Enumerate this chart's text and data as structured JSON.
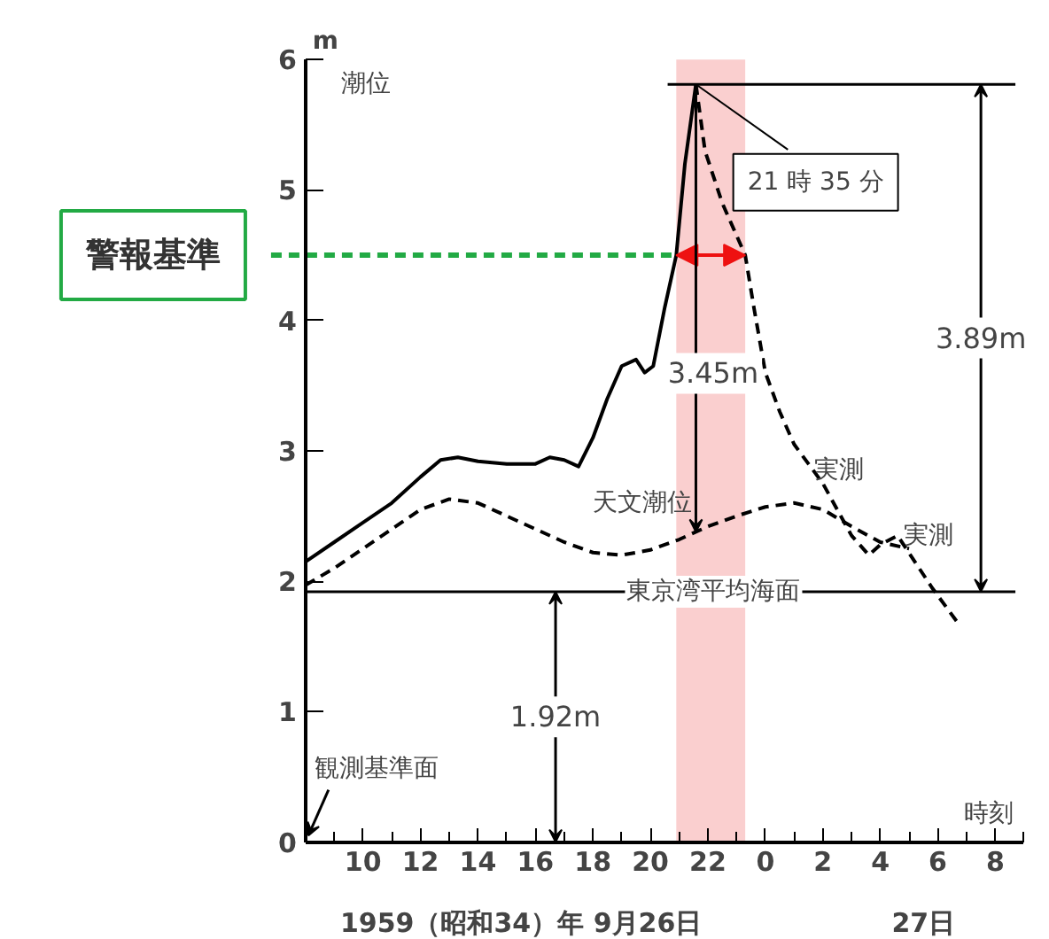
{
  "chart_data": {
    "type": "line",
    "xlabel": "時刻",
    "ylabel": "潮位",
    "x": [
      "1959-09-26T08:00",
      "1959-09-26T09:00",
      "1959-09-26T10:00",
      "1959-09-26T11:00",
      "1959-09-26T12:00",
      "1959-09-26T13:00",
      "1959-09-26T14:00",
      "1959-09-26T15:00",
      "1959-09-26T16:00",
      "1959-09-26T17:00",
      "1959-09-26T18:00",
      "1959-09-26T19:00",
      "1959-09-26T20:00",
      "1959-09-26T21:00",
      "1959-09-26T22:00",
      "1959-09-26T23:00",
      "1959-09-27T00:00",
      "1959-09-27T01:00",
      "1959-09-27T02:00",
      "1959-09-27T03:00",
      "1959-09-27T04:00",
      "1959-09-27T05:00"
    ],
    "series": [
      {
        "color": "#000000",
        "line_style": "solid",
        "x": [
          "1959-09-26T08:00",
          "1959-09-26T09:00",
          "1959-09-26T10:00",
          "1959-09-26T11:00",
          "1959-09-26T12:00",
          "1959-09-26T12:42",
          "1959-09-26T13:18",
          "1959-09-26T14:00",
          "1959-09-26T15:00",
          "1959-09-26T16:00",
          "1959-09-26T16:30",
          "1959-09-26T17:00",
          "1959-09-26T17:30",
          "1959-09-26T18:00",
          "1959-09-26T18:30",
          "1959-09-26T19:00",
          "1959-09-26T19:30",
          "1959-09-26T19:48",
          "1959-09-26T20:06",
          "1959-09-26T20:30",
          "1959-09-26T20:54",
          "1959-09-26T21:12",
          "1959-09-26T21:35"
        ],
        "values": [
          2.15,
          2.3,
          2.45,
          2.6,
          2.8,
          2.93,
          2.95,
          2.92,
          2.9,
          2.9,
          2.95,
          2.93,
          2.88,
          3.1,
          3.4,
          3.65,
          3.7,
          3.6,
          3.65,
          4.1,
          4.5,
          5.2,
          5.81
        ]
      },
      {
        "color": "#000000",
        "line_style": "dashed",
        "x": [
          "1959-09-26T21:35",
          "1959-09-26T21:54",
          "1959-09-26T22:30",
          "1959-09-26T23:00",
          "1959-09-26T23:18",
          "1959-09-26T23:36",
          "1959-09-27T00:00",
          "1959-09-27T00:30",
          "1959-09-27T01:00",
          "1959-09-27T01:30",
          "1959-09-27T02:00",
          "1959-09-27T02:30",
          "1959-09-27T03:00",
          "1959-09-27T03:36",
          "1959-09-27T04:00",
          "1959-09-27T04:36",
          "1959-09-27T05:12",
          "1959-09-27T05:48",
          "1959-09-27T06:18",
          "1959-09-27T06:42"
        ],
        "values": [
          5.81,
          5.3,
          4.9,
          4.65,
          4.5,
          4.1,
          3.6,
          3.3,
          3.05,
          2.9,
          2.75,
          2.55,
          2.35,
          2.2,
          2.28,
          2.35,
          2.15,
          1.95,
          1.8,
          1.68
        ]
      },
      {
        "color": "#000000",
        "line_style": "dashed",
        "values": [
          1.97,
          2.1,
          2.25,
          2.4,
          2.55,
          2.63,
          2.6,
          2.5,
          2.4,
          2.3,
          2.22,
          2.2,
          2.24,
          2.32,
          2.42,
          2.5,
          2.57,
          2.6,
          2.55,
          2.42,
          2.3,
          2.25
        ]
      }
    ],
    "xlim": [
      "1959-09-26T08:00",
      "1959-09-27T09:00"
    ],
    "ylim": [
      0,
      6
    ],
    "xticks": [
      {
        "value": "1959-09-26T10:00",
        "label": "10"
      },
      {
        "value": "1959-09-26T12:00",
        "label": "12"
      },
      {
        "value": "1959-09-26T14:00",
        "label": "14"
      },
      {
        "value": "1959-09-26T16:00",
        "label": "16"
      },
      {
        "value": "1959-09-26T18:00",
        "label": "18"
      },
      {
        "value": "1959-09-26T20:00",
        "label": "20"
      },
      {
        "value": "1959-09-26T22:00",
        "label": "22"
      },
      {
        "value": "1959-09-27T00:00",
        "label": "0"
      },
      {
        "value": "1959-09-27T02:00",
        "label": "2"
      },
      {
        "value": "1959-09-27T04:00",
        "label": "4"
      },
      {
        "value": "1959-09-27T06:00",
        "label": "6"
      },
      {
        "value": "1959-09-27T08:00",
        "label": "8"
      }
    ],
    "yticks": [
      0,
      1,
      2,
      3,
      4,
      5,
      6
    ],
    "grid": false,
    "ref_lines": [
      {
        "axis": "y",
        "value": 4.5,
        "label": "警報基準",
        "color": "#22aa44",
        "line_style": "dashed"
      },
      {
        "axis": "y",
        "value": 1.92,
        "label": "東京湾平均海面",
        "color": "#000000",
        "line_style": "solid"
      },
      {
        "axis": "y",
        "value": 5.81,
        "label": null,
        "color": "#000000",
        "line_style": "solid"
      }
    ],
    "bands": [
      {
        "axis": "x",
        "from": "1959-09-26T20:54",
        "to": "1959-09-26T23:18",
        "label": null,
        "color": "#f9caca"
      }
    ],
    "annotations": [
      {
        "text": "21 時 35 分",
        "x": "1959-09-26T21:35",
        "y": 5.81
      },
      "3.45m",
      "3.89m",
      "1.92m",
      "観測基準面",
      "天文潮位",
      {
        "text": "実測",
        "x": "1959-09-27T01:42",
        "y": 2.85
      },
      {
        "text": "実測",
        "x": "1959-09-27T04:48",
        "y": 2.35
      },
      "m",
      "1959（昭和34）年 9月26日",
      "27日"
    ]
  }
}
